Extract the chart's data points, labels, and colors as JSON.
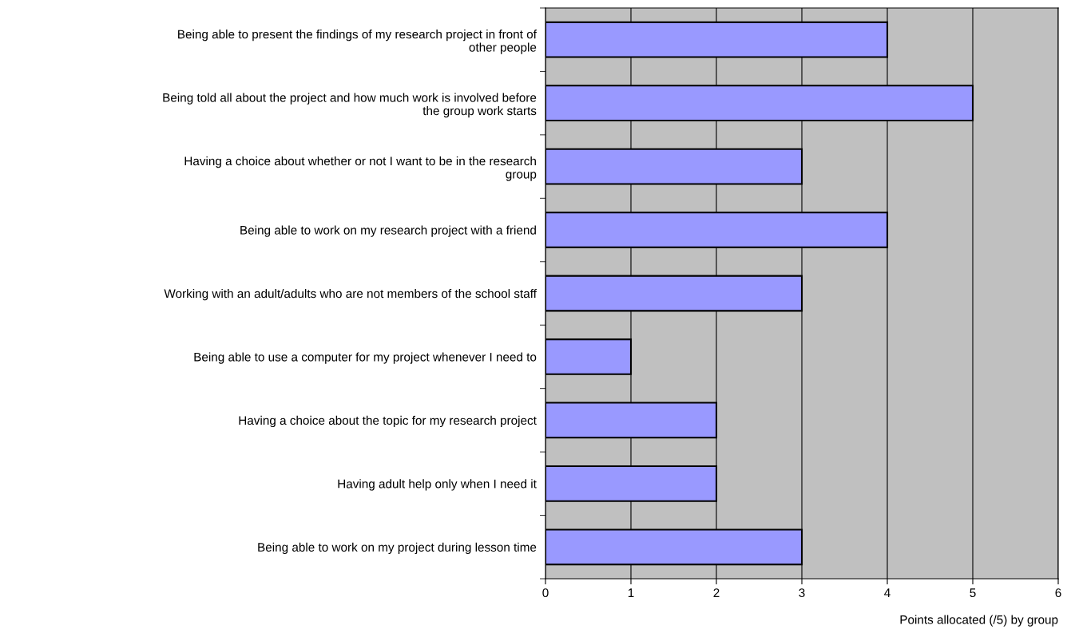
{
  "chart_data": {
    "type": "bar",
    "orientation": "horizontal",
    "xlabel": "Points allocated (/5) by group",
    "categories": [
      "Being able to present the findings of my research project in front of\nother people",
      "Being told all about the project and how much work is involved before\nthe group work starts",
      "Having a choice about whether or not I want to be in the research\ngroup",
      "Being able to work on my research project with a friend",
      "Working with an adult/adults who are not members of the school staff",
      "Being able to use a computer for my project whenever I need to",
      "Having a choice about the topic for my research project",
      "Having adult help only when I need it",
      "Being able to work on my project during lesson time"
    ],
    "values": [
      4,
      5,
      3,
      4,
      3,
      1,
      2,
      2,
      3
    ],
    "color": "#9999ff",
    "xlim": [
      0,
      6
    ],
    "xticks": [
      0,
      1,
      2,
      3,
      4,
      5,
      6
    ],
    "grid": "x",
    "legend": false
  }
}
